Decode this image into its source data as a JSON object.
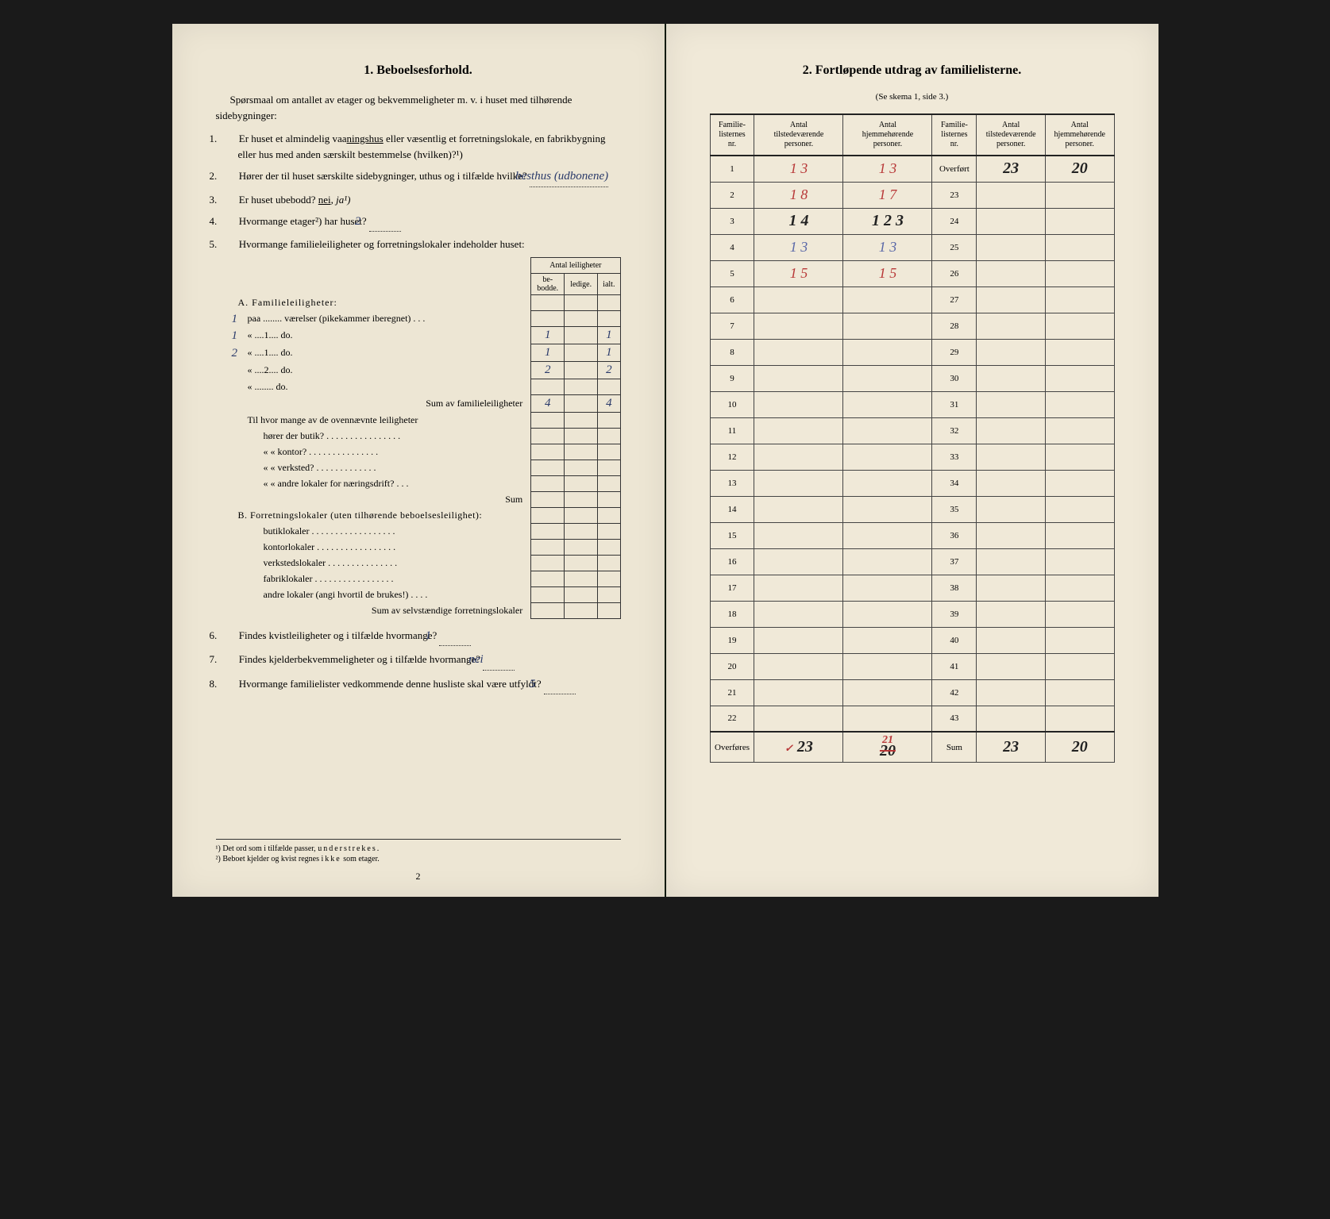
{
  "left": {
    "title": "1.   Beboelsesforhold.",
    "intro": "Spørsmaal om antallet av etager og bekvemmeligheter m. v. i huset med tilhørende sidebygninger:",
    "q1": "Er huset et almindelig vaaningshus eller væsentlig et forretningslokale, en fabrikbygning eller hus med anden særskilt bestemmelse (hvilken)?¹)",
    "q2": "Hører der til huset særskilte sidebygninger, uthus og i tilfælde hvilke?",
    "q2_ans": "besthus (udbonene)",
    "q3_text": "Er huset ubebodd?",
    "q3_nei": "nei,",
    "q3_ja": "ja¹)",
    "q4_text": "Hvormange etager²) har huset?",
    "q4_ans": "2",
    "q5": "Hvormange familieleiligheter og forretningslokaler indeholder huset:",
    "tbl_header_group": "Antal leiligheter",
    "tbl_h1": "be-\nbodde.",
    "tbl_h2": "ledige.",
    "tbl_h3": "ialt.",
    "secA": "A. Familieleiligheter:",
    "rowA1_pre": "paa ........ værelser (pikekammer iberegnet) . . .",
    "rowA2_pre": "«   ....1....   do.",
    "rowA3_pre": "«   ....1....   do.",
    "rowA4_pre": "«   ....2....   do.",
    "rowA5_pre": "«   ........   do.",
    "margin1": "1",
    "margin2": "1",
    "margin3": "2",
    "valA2_b": "1",
    "valA2_i": "1",
    "valA3_b": "1",
    "valA3_i": "1",
    "valA4_b": "2",
    "valA4_i": "2",
    "sumA_label": "Sum av familieleiligheter",
    "sumA_b": "4",
    "sumA_i": "4",
    "til_label": "Til hvor mange av de ovennævnte leiligheter",
    "til_r1": "hører der butik? . . . . . . . . . . . . . . . .",
    "til_r2": "«      «   kontor? . . . . . . . . . . . . . . .",
    "til_r3": "«      «   verksted? . . . . . . . . . . . . .",
    "til_r4": "«      «   andre lokaler for næringsdrift? . . .",
    "til_sum": "Sum",
    "secB": "B. Forretningslokaler (uten tilhørende beboelsesleilighet):",
    "rowB1": "butiklokaler . . . . . . . . . . . . . . . . . .",
    "rowB2": "kontorlokaler . . . . . . . . . . . . . . . . .",
    "rowB3": "verkstedslokaler . . . . . . . . . . . . . . .",
    "rowB4": "fabriklokaler . . . . . . . . . . . . . . . . .",
    "rowB5": "andre lokaler (angi hvortil de brukes!) . . . .",
    "sumB_label": "Sum av selvstændige forretningslokaler",
    "q6": "Findes kvistleiligheter og i tilfælde hvormange?",
    "q6_ans": "1",
    "q7": "Findes kjelderbekvemmeligheter og i tilfælde hvormange?",
    "q7_ans": "nei",
    "q8": "Hvormange familielister vedkommende denne husliste skal være utfyldt?",
    "q8_ans": "5",
    "fn1": "¹) Det ord som i tilfælde passer, understrekes.",
    "fn2": "²) Beboet kjelder og kvist regnes ikke som etager.",
    "pagenum": "2"
  },
  "right": {
    "title": "2.   Fortløpende utdrag av familielisterne.",
    "subtitle": "(Se skema 1, side 3.)",
    "headers": {
      "h1": "Familie-\nlisternes\nnr.",
      "h2": "Antal\ntilstedeværende\npersoner.",
      "h3": "Antal\nhjemmehørende\npersoner.",
      "h4": "Familie-\nlisternes\nnr.",
      "h5": "Antal\ntilstedeværende\npersoner.",
      "h6": "Antal\nhjemmehørende\npersoner."
    },
    "rows_left_nums": [
      "1",
      "2",
      "3",
      "4",
      "5",
      "6",
      "7",
      "8",
      "9",
      "10",
      "11",
      "12",
      "13",
      "14",
      "15",
      "16",
      "17",
      "18",
      "19",
      "20",
      "21",
      "22"
    ],
    "rows_right_nums": [
      "23",
      "24",
      "25",
      "26",
      "27",
      "28",
      "29",
      "30",
      "31",
      "32",
      "33",
      "34",
      "35",
      "36",
      "37",
      "38",
      "39",
      "40",
      "41",
      "42",
      "43"
    ],
    "overfort_label": "Overført",
    "overfort_t": "23",
    "overfort_h": "20",
    "data_left": [
      {
        "t": "1 3",
        "h": "1 3",
        "tc": "red",
        "hc": "red"
      },
      {
        "t": "1 8",
        "h": "1 7",
        "tc": "red",
        "hc": "red"
      },
      {
        "t": "1 4",
        "h": "1 2 3",
        "tc": "black",
        "hc": "black"
      },
      {
        "t": "1 3",
        "h": "1 3",
        "tc": "blue",
        "hc": "blue"
      },
      {
        "t": "1 5",
        "h": "1 5",
        "tc": "red",
        "hc": "red"
      }
    ],
    "overfores_label": "Overføres",
    "overfores_t": "23",
    "overfores_h_orig": "20",
    "overfores_h_corr": "21",
    "sum_label": "Sum",
    "sum_t": "23",
    "sum_h": "20"
  },
  "colors": {
    "paper": "#ede6d4",
    "ink": "#222222",
    "handwritten_blue": "#5a68a8",
    "handwritten_red": "#b83838"
  }
}
